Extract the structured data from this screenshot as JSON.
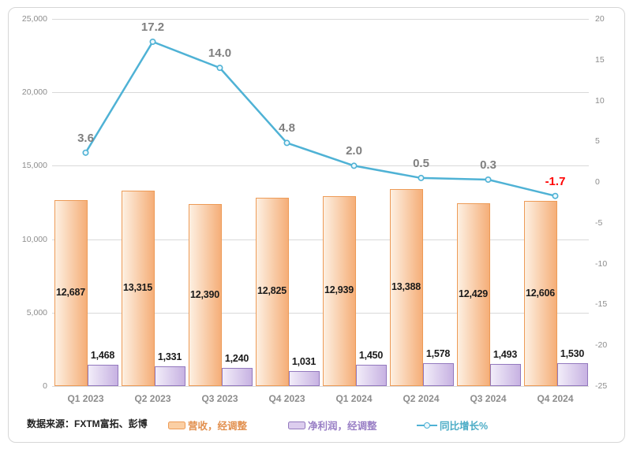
{
  "source_note": "数据来源：FXTM富拓、彭博",
  "chart_data": {
    "type": "combo",
    "categories": [
      "Q1 2023",
      "Q2 2023",
      "Q3 2023",
      "Q4 2023",
      "Q1 2024",
      "Q2 2024",
      "Q3 2024",
      "Q4 2024"
    ],
    "series": [
      {
        "name": "营收，经调整",
        "type": "bar",
        "axis": "left",
        "values": [
          12687,
          13315,
          12390,
          12825,
          12939,
          13388,
          12429,
          12606
        ],
        "data_labels": [
          "12,687",
          "13,315",
          "12,390",
          "12,825",
          "12,939",
          "13,388",
          "12,429",
          "12,606"
        ]
      },
      {
        "name": "净利润，经调整",
        "type": "bar",
        "axis": "left",
        "values": [
          1468,
          1331,
          1240,
          1031,
          1450,
          1578,
          1493,
          1530
        ],
        "data_labels": [
          "1,468",
          "1,331",
          "1,240",
          "1,031",
          "1,450",
          "1,578",
          "1,493",
          "1,530"
        ]
      },
      {
        "name": "同比增长%",
        "type": "line",
        "axis": "right",
        "values": [
          3.6,
          17.2,
          14.0,
          4.8,
          2.0,
          0.5,
          0.3,
          -1.7
        ],
        "data_labels": [
          "3.6",
          "17.2",
          "14.0",
          "4.8",
          "2.0",
          "0.5",
          "0.3",
          "-1.7"
        ]
      }
    ],
    "left_axis": {
      "min": 0,
      "max": 25000,
      "step": 5000,
      "tick_labels": [
        "25,000",
        "20,000",
        "15,000",
        "10,000",
        "5,000",
        "0"
      ]
    },
    "right_axis": {
      "min": -25,
      "max": 20,
      "step": 5,
      "tick_labels": [
        "20",
        "15",
        "10",
        "5",
        "0",
        "-5",
        "-10",
        "-15",
        "-20",
        "-25"
      ]
    },
    "grid": true,
    "legend_position": "bottom",
    "colors": {
      "revenue_border": "#ED9B57",
      "revenue_grad_left": "#FDF0E2",
      "revenue_grad_right": "#F5AE78",
      "profit_border": "#9379BE",
      "profit_grad_left": "#F2EDF9",
      "profit_grad_right": "#C7B2E2",
      "line": "#4FB2D5",
      "grid": "#D9D9D9",
      "axis_text": "#8C8C8C",
      "bar_label": "#1A1A1A",
      "line_label": "#7F7F7F",
      "negative": "#FF0000",
      "legend_revenue": "#E2904F",
      "legend_profit": "#997FC5",
      "legend_growth": "#4BACC6",
      "revenue_swatch": "#FBCFA4",
      "profit_swatch": "#DCCDEE"
    }
  }
}
